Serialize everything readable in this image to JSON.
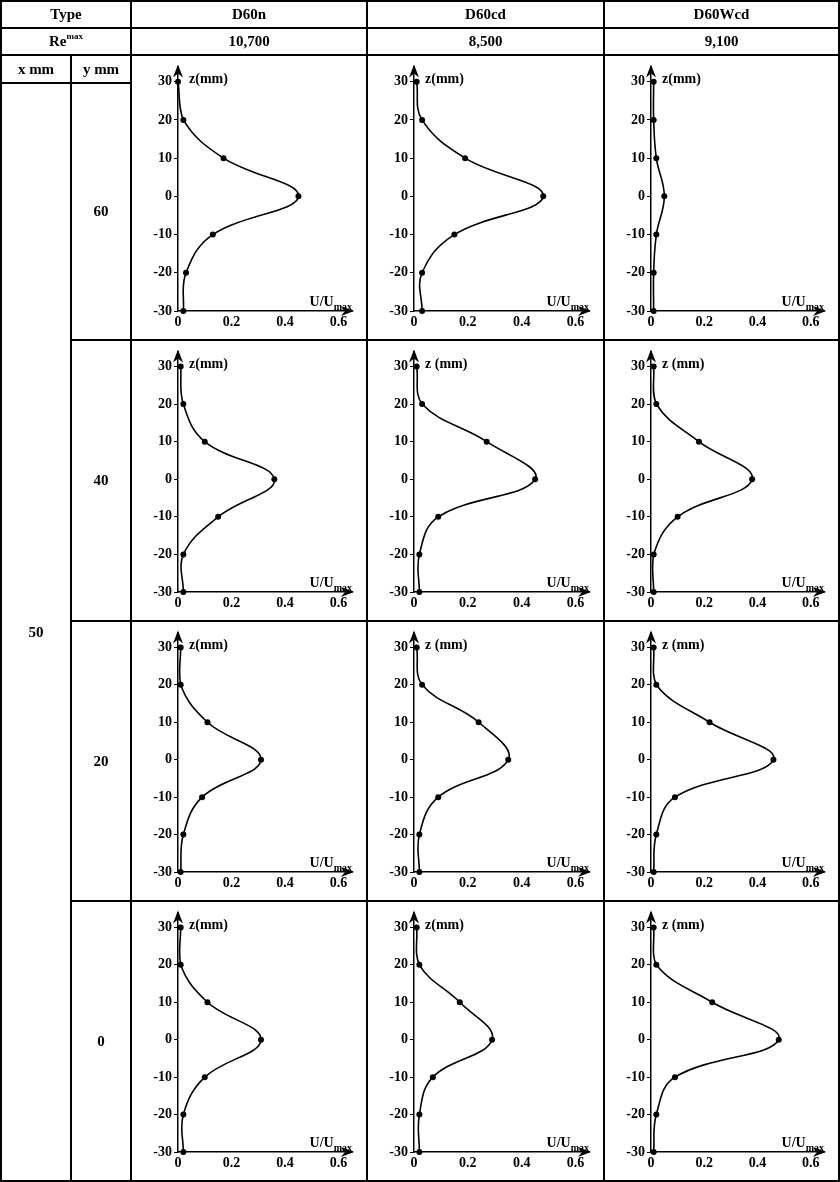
{
  "chart_data": [
    {
      "type": "other",
      "annotations": [
        "Type",
        "D60n",
        "D60cd",
        "D60Wcd",
        "Re$^{max}$",
        "10,700",
        "8,500",
        "9,100",
        "x mm",
        "y mm",
        "50"
      ]
    },
    {
      "type": "other",
      "annotations": [
        "60"
      ]
    },
    {
      "type": "line",
      "xlabel": "U/U$_{max}$",
      "ylabel": "z(mm)",
      "x": [
        0,
        0.02,
        0.17,
        0.45,
        0.13,
        0.03,
        0.02
      ],
      "values": [
        30,
        20,
        10,
        0,
        -10,
        -20,
        -30
      ],
      "color": "#000000",
      "marker": "circle",
      "xlim": [
        0,
        0.65
      ],
      "xticks": [
        0,
        0.2,
        0.4,
        0.6
      ],
      "ylim": [
        -30,
        34
      ],
      "yticks": [
        -30,
        -20,
        -10,
        0,
        10,
        20,
        30
      ]
    },
    {
      "type": "line",
      "xlabel": "U/U$_{max}$",
      "ylabel": "z(mm)",
      "x": [
        0.01,
        0.03,
        0.19,
        0.48,
        0.15,
        0.03,
        0.03
      ],
      "values": [
        30,
        20,
        10,
        0,
        -10,
        -20,
        -30
      ],
      "color": "#000000",
      "marker": "circle",
      "xlim": [
        0,
        0.65
      ],
      "xticks": [
        0,
        0.2,
        0.4,
        0.6
      ],
      "ylim": [
        -30,
        34
      ],
      "yticks": [
        -30,
        -20,
        -10,
        0,
        10,
        20,
        30
      ]
    },
    {
      "type": "line",
      "xlabel": "U/U$_{max}$",
      "ylabel": "z(mm)",
      "x": [
        0.01,
        0.01,
        0.02,
        0.05,
        0.02,
        0.01,
        0.01
      ],
      "values": [
        30,
        20,
        10,
        0,
        -10,
        -20,
        -30
      ],
      "color": "#000000",
      "marker": "circle",
      "xlim": [
        0,
        0.65
      ],
      "xticks": [
        0,
        0.2,
        0.4,
        0.6
      ],
      "ylim": [
        -30,
        34
      ],
      "yticks": [
        -30,
        -20,
        -10,
        0,
        10,
        20,
        30
      ]
    },
    {
      "type": "other",
      "annotations": [
        "40"
      ]
    },
    {
      "type": "line",
      "xlabel": "U/U$_{max}$",
      "ylabel": "z(mm)",
      "x": [
        0.01,
        0.02,
        0.1,
        0.36,
        0.15,
        0.02,
        0.02
      ],
      "values": [
        30,
        20,
        10,
        0,
        -10,
        -20,
        -30
      ],
      "color": "#000000",
      "marker": "circle",
      "xlim": [
        0,
        0.65
      ],
      "xticks": [
        0,
        0.2,
        0.4,
        0.6
      ],
      "ylim": [
        -30,
        34
      ],
      "yticks": [
        -30,
        -20,
        -10,
        0,
        10,
        20,
        30
      ]
    },
    {
      "type": "line",
      "xlabel": "U/U$_{max}$",
      "ylabel": "z (mm)",
      "x": [
        0.01,
        0.03,
        0.27,
        0.45,
        0.09,
        0.02,
        0.02
      ],
      "values": [
        30,
        20,
        10,
        0,
        -10,
        -20,
        -30
      ],
      "color": "#000000",
      "marker": "circle",
      "xlim": [
        0,
        0.65
      ],
      "xticks": [
        0,
        0.2,
        0.4,
        0.6
      ],
      "ylim": [
        -30,
        34
      ],
      "yticks": [
        -30,
        -20,
        -10,
        0,
        10,
        20,
        30
      ]
    },
    {
      "type": "line",
      "xlabel": "U/U$_{max}$",
      "ylabel": "z (mm)",
      "x": [
        0.01,
        0.02,
        0.18,
        0.38,
        0.1,
        0.01,
        0.01
      ],
      "values": [
        30,
        20,
        10,
        0,
        -10,
        -20,
        -30
      ],
      "color": "#000000",
      "marker": "circle",
      "xlim": [
        0,
        0.65
      ],
      "xticks": [
        0,
        0.2,
        0.4,
        0.6
      ],
      "ylim": [
        -30,
        34
      ],
      "yticks": [
        -30,
        -20,
        -10,
        0,
        10,
        20,
        30
      ]
    },
    {
      "type": "other",
      "annotations": [
        "20"
      ]
    },
    {
      "type": "line",
      "xlabel": "U/U$_{max}$",
      "ylabel": "z(mm)",
      "x": [
        0.01,
        0.01,
        0.11,
        0.31,
        0.09,
        0.02,
        0.01
      ],
      "values": [
        30,
        20,
        10,
        0,
        -10,
        -20,
        -30
      ],
      "color": "#000000",
      "marker": "circle",
      "xlim": [
        0,
        0.65
      ],
      "xticks": [
        0,
        0.2,
        0.4,
        0.6
      ],
      "ylim": [
        -30,
        34
      ],
      "yticks": [
        -30,
        -20,
        -10,
        0,
        10,
        20,
        30
      ]
    },
    {
      "type": "line",
      "xlabel": "U/U$_{max}$",
      "ylabel": "z (mm)",
      "x": [
        0.01,
        0.03,
        0.24,
        0.35,
        0.09,
        0.02,
        0.02
      ],
      "values": [
        30,
        20,
        10,
        0,
        -10,
        -20,
        -30
      ],
      "color": "#000000",
      "marker": "circle",
      "xlim": [
        0,
        0.65
      ],
      "xticks": [
        0,
        0.2,
        0.4,
        0.6
      ],
      "ylim": [
        -30,
        34
      ],
      "yticks": [
        -30,
        -20,
        -10,
        0,
        10,
        20,
        30
      ]
    },
    {
      "type": "line",
      "xlabel": "U/U$_{max}$",
      "ylabel": "z (mm)",
      "x": [
        0.01,
        0.02,
        0.22,
        0.46,
        0.09,
        0.02,
        0.01
      ],
      "values": [
        30,
        20,
        10,
        0,
        -10,
        -20,
        -30
      ],
      "color": "#000000",
      "marker": "circle",
      "xlim": [
        0,
        0.65
      ],
      "xticks": [
        0,
        0.2,
        0.4,
        0.6
      ],
      "ylim": [
        -30,
        34
      ],
      "yticks": [
        -30,
        -20,
        -10,
        0,
        10,
        20,
        30
      ]
    },
    {
      "type": "other",
      "annotations": [
        "0"
      ]
    },
    {
      "type": "line",
      "xlabel": "U/U$_{max}$",
      "ylabel": "z(mm)",
      "x": [
        0.01,
        0.01,
        0.11,
        0.31,
        0.1,
        0.02,
        0.02
      ],
      "values": [
        30,
        20,
        10,
        0,
        -10,
        -20,
        -30
      ],
      "color": "#000000",
      "marker": "circle",
      "xlim": [
        0,
        0.65
      ],
      "xticks": [
        0,
        0.2,
        0.4,
        0.6
      ],
      "ylim": [
        -30,
        34
      ],
      "yticks": [
        -30,
        -20,
        -10,
        0,
        10,
        20,
        30
      ]
    },
    {
      "type": "line",
      "xlabel": "U/U$_{max}$",
      "ylabel": "z(mm)",
      "x": [
        0.01,
        0.02,
        0.17,
        0.29,
        0.07,
        0.02,
        0.02
      ],
      "values": [
        30,
        20,
        10,
        0,
        -10,
        -20,
        -30
      ],
      "color": "#000000",
      "marker": "circle",
      "xlim": [
        0,
        0.65
      ],
      "xticks": [
        0,
        0.2,
        0.4,
        0.6
      ],
      "ylim": [
        -30,
        34
      ],
      "yticks": [
        -30,
        -20,
        -10,
        0,
        10,
        20,
        30
      ]
    },
    {
      "type": "line",
      "xlabel": "U/U$_{max}$",
      "ylabel": "z (mm)",
      "x": [
        0.01,
        0.02,
        0.23,
        0.48,
        0.09,
        0.02,
        0.01
      ],
      "values": [
        30,
        20,
        10,
        0,
        -10,
        -20,
        -30
      ],
      "color": "#000000",
      "marker": "circle",
      "xlim": [
        0,
        0.65
      ],
      "xticks": [
        0,
        0.2,
        0.4,
        0.6
      ],
      "ylim": [
        -30,
        34
      ],
      "yticks": [
        -30,
        -20,
        -10,
        0,
        10,
        20,
        30
      ]
    }
  ]
}
